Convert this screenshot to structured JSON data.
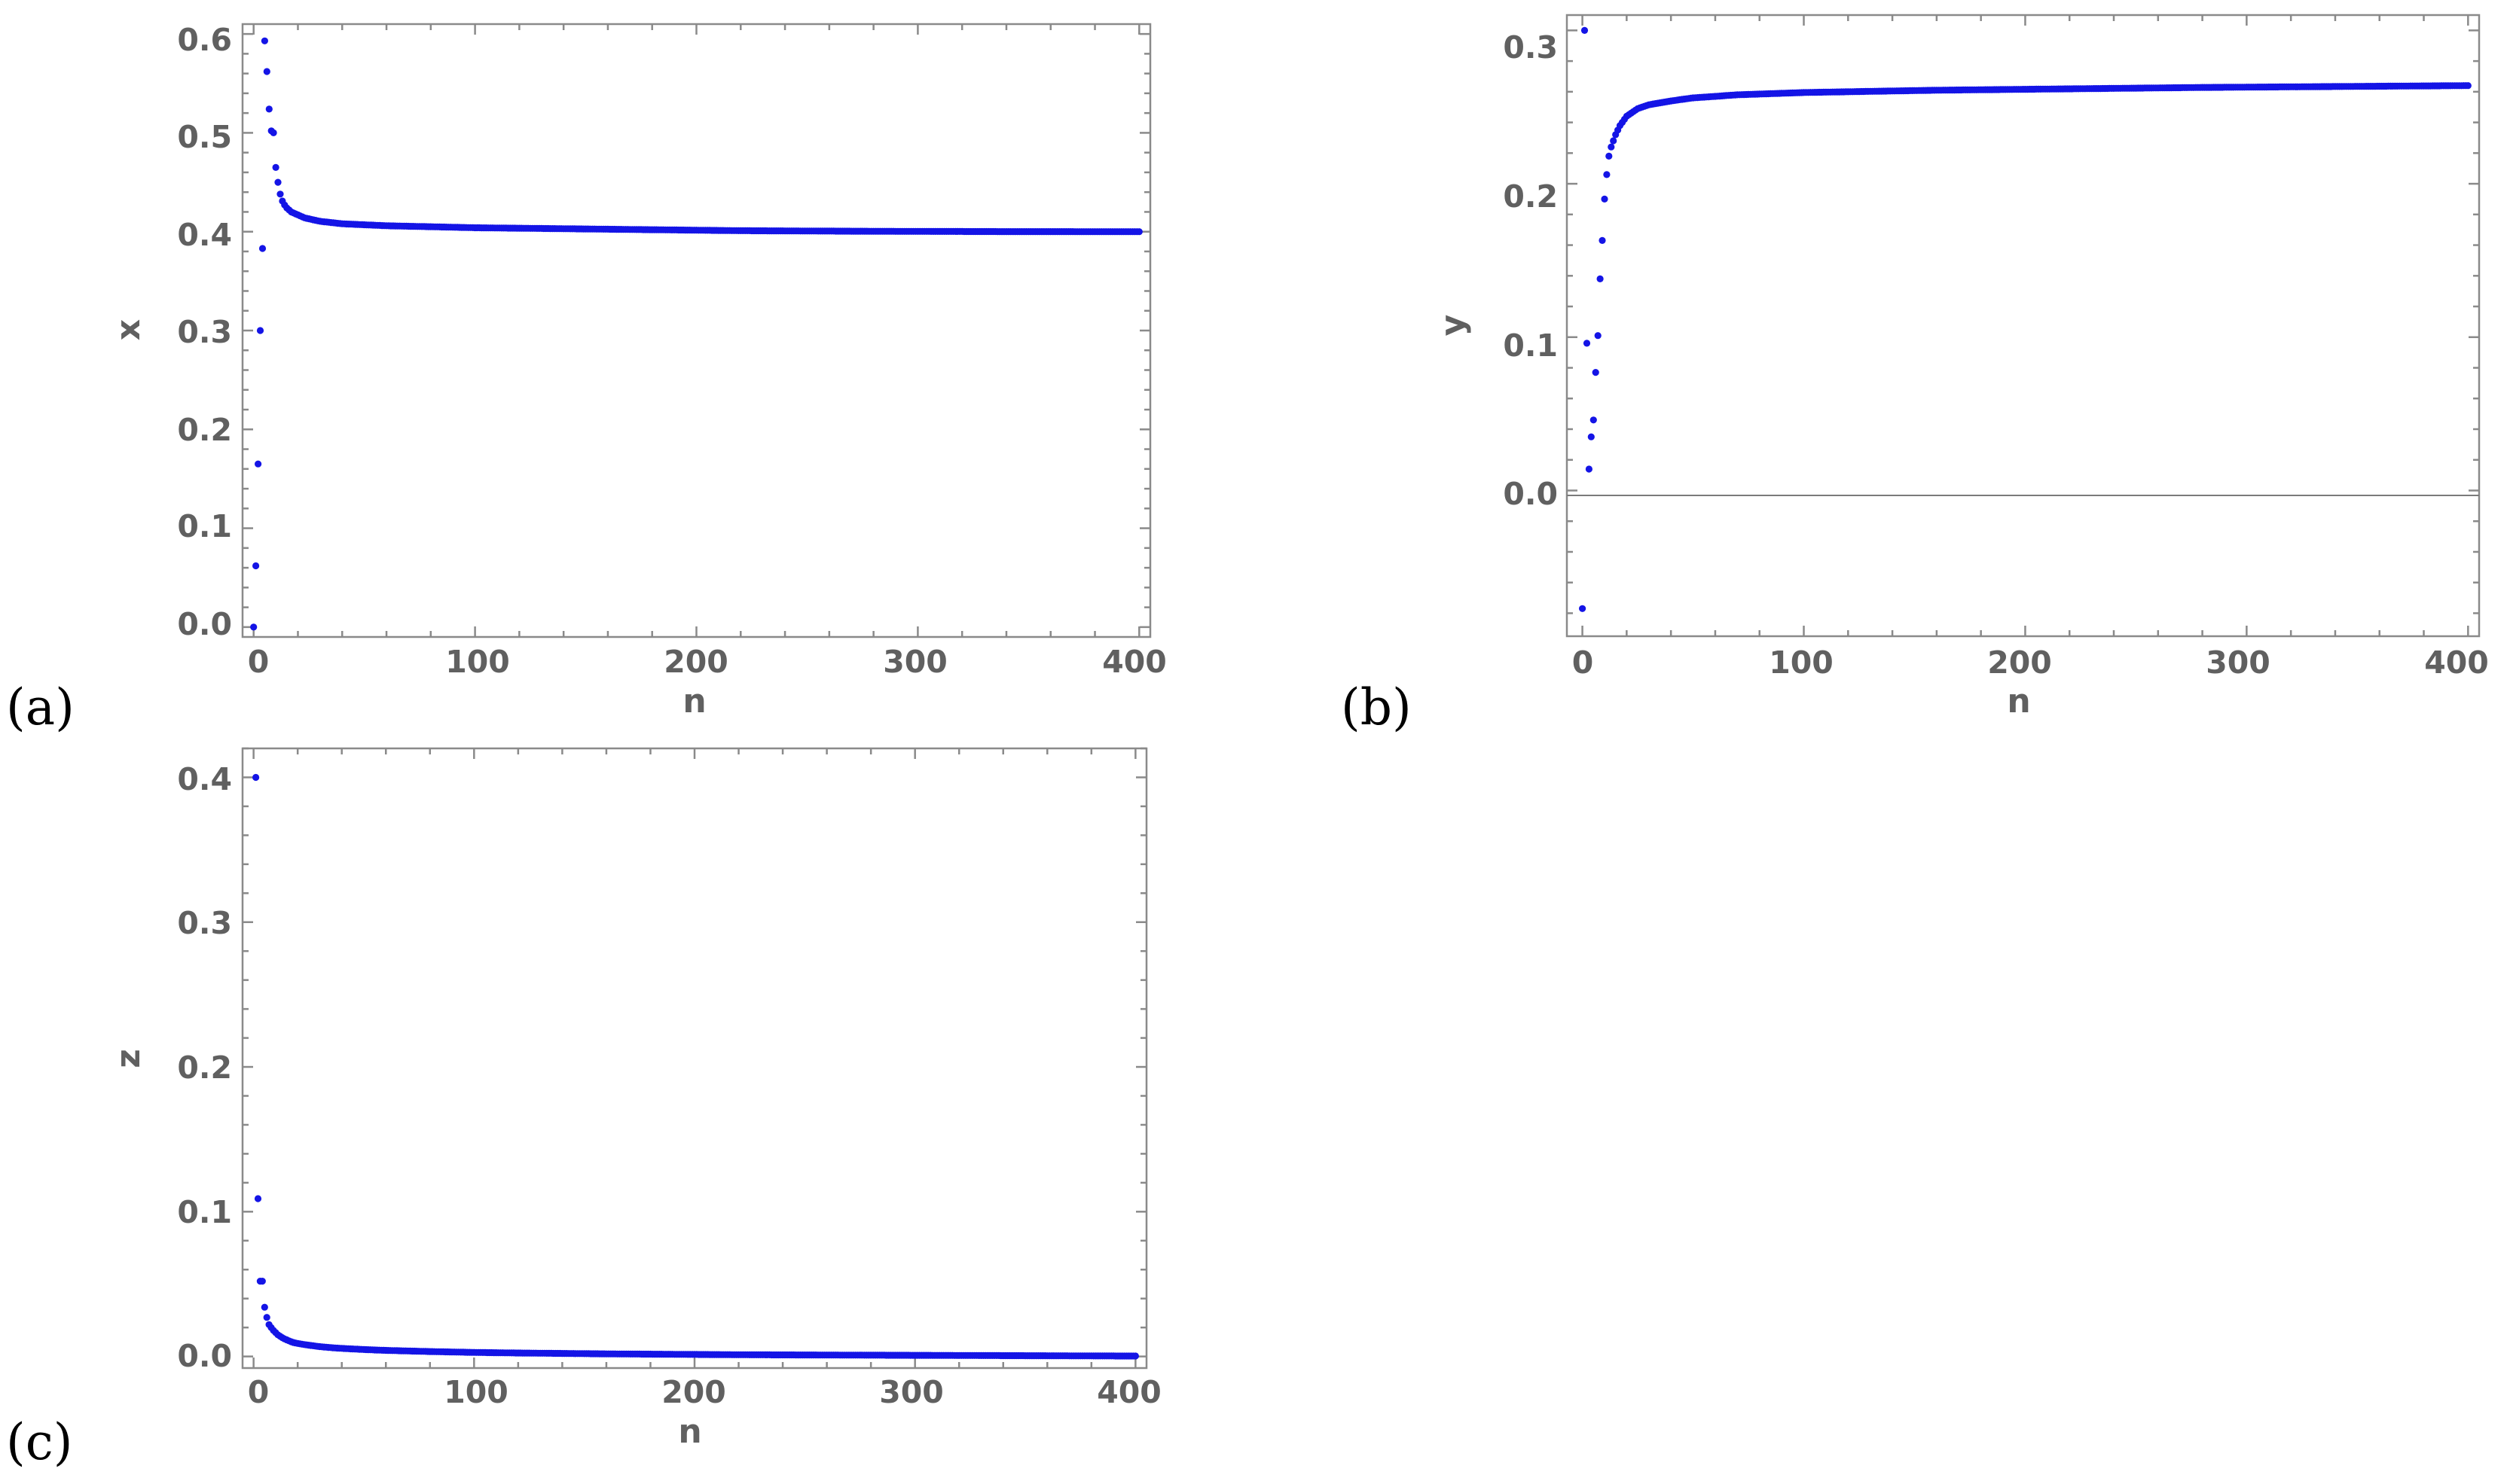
{
  "colors": {
    "points": "#1414e6",
    "frame": "#8a8a8a",
    "text": "#606060"
  },
  "chart_data": [
    {
      "id": "a",
      "type": "scatter",
      "panel_label": "(a)",
      "xlabel": "n",
      "ylabel": "x",
      "xlim": [
        -5,
        405
      ],
      "ylim": [
        -0.01,
        0.61
      ],
      "xticks": [
        "0",
        "100",
        "200",
        "300",
        "400"
      ],
      "yticks": [
        "0.0",
        "0.1",
        "0.2",
        "0.3",
        "0.4",
        "0.5",
        "0.6"
      ],
      "zero_line": false,
      "x": [
        0,
        1,
        2,
        3,
        4,
        5,
        6,
        7,
        8,
        9,
        10,
        11,
        12,
        13,
        14,
        15,
        16,
        17,
        18,
        19,
        20,
        21,
        22,
        23,
        24,
        25,
        26,
        27,
        28,
        29,
        30,
        32,
        34,
        36,
        38,
        40,
        45,
        50,
        55,
        60,
        70,
        80,
        90,
        100,
        120,
        140,
        160,
        180,
        200,
        220,
        240,
        260,
        280,
        300,
        320,
        340,
        360,
        380,
        400
      ],
      "y": [
        0.0,
        0.062,
        0.165,
        0.3,
        0.383,
        0.593,
        0.562,
        0.524,
        0.502,
        0.5,
        0.465,
        0.45,
        0.438,
        0.431,
        0.427,
        0.424,
        0.422,
        0.42,
        0.419,
        0.418,
        0.417,
        0.416,
        0.415,
        0.414,
        0.4135,
        0.413,
        0.4125,
        0.412,
        0.4115,
        0.411,
        0.4105,
        0.41,
        0.4095,
        0.409,
        0.4085,
        0.408,
        0.4075,
        0.407,
        0.4065,
        0.406,
        0.4055,
        0.405,
        0.4045,
        0.404,
        0.4035,
        0.403,
        0.4025,
        0.402,
        0.4015,
        0.401,
        0.4008,
        0.4006,
        0.4004,
        0.4003,
        0.4002,
        0.4001,
        0.4001,
        0.4,
        0.4
      ]
    },
    {
      "id": "b",
      "type": "scatter",
      "panel_label": "(b)",
      "xlabel": "n",
      "ylabel": "y",
      "xlim": [
        -7,
        405
      ],
      "ylim": [
        -0.095,
        0.31
      ],
      "xticks": [
        "0",
        "100",
        "200",
        "300",
        "400"
      ],
      "yticks": [
        "0.0",
        "0.1",
        "0.2",
        "0.3"
      ],
      "zero_line": true,
      "x": [
        0,
        1,
        2,
        3,
        4,
        5,
        6,
        7,
        8,
        9,
        10,
        11,
        12,
        13,
        14,
        15,
        16,
        17,
        18,
        19,
        20,
        21,
        22,
        23,
        24,
        25,
        26,
        27,
        28,
        29,
        30,
        32,
        34,
        36,
        38,
        40,
        45,
        50,
        55,
        60,
        70,
        80,
        90,
        100,
        120,
        140,
        160,
        180,
        200,
        220,
        240,
        260,
        280,
        300,
        320,
        340,
        360,
        380,
        400
      ],
      "y": [
        -0.077,
        0.3,
        0.096,
        0.014,
        0.035,
        0.046,
        0.077,
        0.101,
        0.138,
        0.163,
        0.19,
        0.206,
        0.218,
        0.224,
        0.228,
        0.232,
        0.235,
        0.238,
        0.24,
        0.242,
        0.244,
        0.245,
        0.246,
        0.247,
        0.248,
        0.249,
        0.2495,
        0.25,
        0.2505,
        0.251,
        0.2515,
        0.252,
        0.2525,
        0.253,
        0.2535,
        0.254,
        0.255,
        0.256,
        0.2565,
        0.257,
        0.258,
        0.2585,
        0.259,
        0.2595,
        0.26,
        0.2605,
        0.261,
        0.2613,
        0.2616,
        0.2619,
        0.2622,
        0.2625,
        0.2628,
        0.263,
        0.2632,
        0.2634,
        0.2636,
        0.2638,
        0.264
      ]
    },
    {
      "id": "c",
      "type": "scatter",
      "panel_label": "(c)",
      "xlabel": "n",
      "ylabel": "z",
      "xlim": [
        -5,
        405
      ],
      "ylim": [
        -0.008,
        0.42
      ],
      "xticks": [
        "0",
        "100",
        "200",
        "300",
        "400"
      ],
      "yticks": [
        "0.0",
        "0.1",
        "0.2",
        "0.3",
        "0.4"
      ],
      "zero_line": false,
      "x": [
        1,
        2,
        3,
        4,
        5,
        6,
        7,
        8,
        9,
        10,
        11,
        12,
        13,
        14,
        15,
        16,
        17,
        18,
        19,
        20,
        22,
        24,
        26,
        28,
        30,
        33,
        36,
        40,
        45,
        50,
        55,
        60,
        70,
        80,
        90,
        100,
        120,
        140,
        160,
        180,
        200,
        220,
        240,
        260,
        280,
        300,
        320,
        340,
        360,
        380,
        400
      ],
      "y": [
        0.4,
        0.109,
        0.052,
        0.052,
        0.034,
        0.027,
        0.022,
        0.02,
        0.018,
        0.0165,
        0.015,
        0.014,
        0.013,
        0.0122,
        0.0115,
        0.0108,
        0.0102,
        0.0097,
        0.0093,
        0.009,
        0.0085,
        0.008,
        0.0076,
        0.0072,
        0.0068,
        0.0064,
        0.006,
        0.0056,
        0.0052,
        0.0048,
        0.0045,
        0.0042,
        0.0038,
        0.0034,
        0.0031,
        0.0028,
        0.0024,
        0.0021,
        0.0018,
        0.0016,
        0.0014,
        0.0012,
        0.0011,
        0.001,
        0.0009,
        0.0008,
        0.0007,
        0.0006,
        0.0005,
        0.0004,
        0.0003
      ]
    }
  ]
}
